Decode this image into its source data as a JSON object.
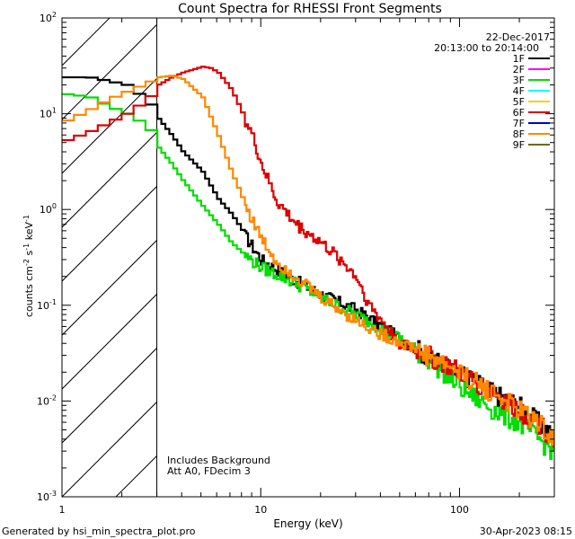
{
  "chart_data": {
    "type": "line",
    "title": "Count Spectra for RHESSI Front Segments",
    "xlabel": "Energy (keV)",
    "ylabel_parts": [
      "counts cm",
      "-2",
      " s",
      "-1",
      " keV",
      "-1"
    ],
    "xscale": "log",
    "yscale": "log",
    "xlim": [
      1,
      300
    ],
    "ylim": [
      0.001,
      100
    ],
    "x_ticks": [
      {
        "value": 1,
        "label": "1"
      },
      {
        "value": 10,
        "label": "10"
      },
      {
        "value": 100,
        "label": "100"
      }
    ],
    "y_ticks": [
      {
        "value": 0.001,
        "base": "10",
        "exp": "-3"
      },
      {
        "value": 0.01,
        "base": "10",
        "exp": "-2"
      },
      {
        "value": 0.1,
        "base": "10",
        "exp": "-1"
      },
      {
        "value": 1,
        "base": "10",
        "exp": "0"
      },
      {
        "value": 10,
        "base": "10",
        "exp": "1"
      },
      {
        "value": 100,
        "base": "10",
        "exp": "2"
      }
    ],
    "hatched_region_xmax": 3,
    "date": "22-Dec-2017",
    "time_range": "20:13:00 to 20:14:00",
    "notes": [
      "Includes Background",
      "Att A0, FDecim 3"
    ],
    "legend_position": "top-right",
    "series": [
      {
        "name": "1F",
        "color": "#000000",
        "x": [
          1.0,
          1.3,
          1.6,
          2.0,
          2.4,
          2.8,
          3.0,
          3.5,
          4.0,
          5.0,
          6.0,
          7.0,
          8.0,
          10.0,
          15.0,
          20.0,
          30.0,
          50.0,
          80.0,
          100.0,
          150.0,
          200.0,
          250.0,
          300.0
        ],
        "y": [
          24,
          24,
          22,
          20,
          15,
          11,
          9,
          6,
          4,
          2.5,
          1.3,
          0.9,
          0.6,
          0.3,
          0.18,
          0.13,
          0.09,
          0.045,
          0.025,
          0.02,
          0.012,
          0.009,
          0.006,
          0.004
        ]
      },
      {
        "name": "2F",
        "color": "#ff00ff",
        "x": [],
        "y": []
      },
      {
        "name": "3F",
        "color": "#00dd00",
        "x": [
          1.0,
          1.3,
          1.6,
          2.0,
          2.4,
          2.8,
          3.0,
          3.5,
          4.0,
          5.0,
          6.0,
          7.0,
          8.0,
          10.0,
          15.0,
          20.0,
          30.0,
          50.0,
          80.0,
          100.0,
          150.0,
          200.0,
          250.0,
          300.0
        ],
        "y": [
          16,
          15,
          12,
          10,
          8,
          6,
          4.5,
          3,
          2,
          1.1,
          0.7,
          0.45,
          0.35,
          0.25,
          0.17,
          0.12,
          0.08,
          0.045,
          0.022,
          0.014,
          0.008,
          0.006,
          0.004,
          0.003
        ]
      },
      {
        "name": "4F",
        "color": "#00ffff",
        "x": [],
        "y": []
      },
      {
        "name": "5F",
        "color": "#ffcc00",
        "x": [],
        "y": []
      },
      {
        "name": "6F",
        "color": "#dd0000",
        "x": [
          1.0,
          1.3,
          1.6,
          2.0,
          2.4,
          2.8,
          3.0,
          3.5,
          4.0,
          4.5,
          5.0,
          5.5,
          6.0,
          7.0,
          8.0,
          9.0,
          10.0,
          12.0,
          15.0,
          20.0,
          25.0,
          30.0,
          35.0,
          40.0,
          50.0,
          70.0,
          100.0,
          150.0,
          200.0,
          250.0,
          300.0
        ],
        "y": [
          5.3,
          6.5,
          8,
          10,
          13,
          17,
          20,
          24,
          27,
          29,
          31,
          30,
          27,
          18,
          10,
          6,
          3,
          1.2,
          0.7,
          0.45,
          0.3,
          0.2,
          0.1,
          0.07,
          0.04,
          0.03,
          0.02,
          0.012,
          0.008,
          0.006,
          0.004
        ]
      },
      {
        "name": "7F",
        "color": "#0000cc",
        "x": [],
        "y": []
      },
      {
        "name": "8F",
        "color": "#ff8800",
        "x": [
          1.0,
          1.3,
          1.6,
          2.0,
          2.4,
          2.8,
          3.0,
          3.5,
          4.0,
          5.0,
          6.0,
          7.0,
          8.0,
          10.0,
          12.0,
          15.0,
          20.0,
          30.0,
          40.0,
          60.0,
          100.0,
          150.0,
          200.0,
          250.0,
          300.0
        ],
        "y": [
          8.5,
          11,
          14,
          17,
          20,
          23,
          24,
          25,
          23,
          15,
          6,
          2.5,
          1.3,
          0.5,
          0.28,
          0.2,
          0.12,
          0.07,
          0.05,
          0.035,
          0.02,
          0.012,
          0.008,
          0.006,
          0.004
        ]
      },
      {
        "name": "9F",
        "color": "#6b6b00",
        "x": [],
        "y": []
      }
    ]
  },
  "footer": {
    "generated_by": "Generated by hsi_min_spectra_plot.pro",
    "timestamp": "30-Apr-2023 08:15"
  }
}
